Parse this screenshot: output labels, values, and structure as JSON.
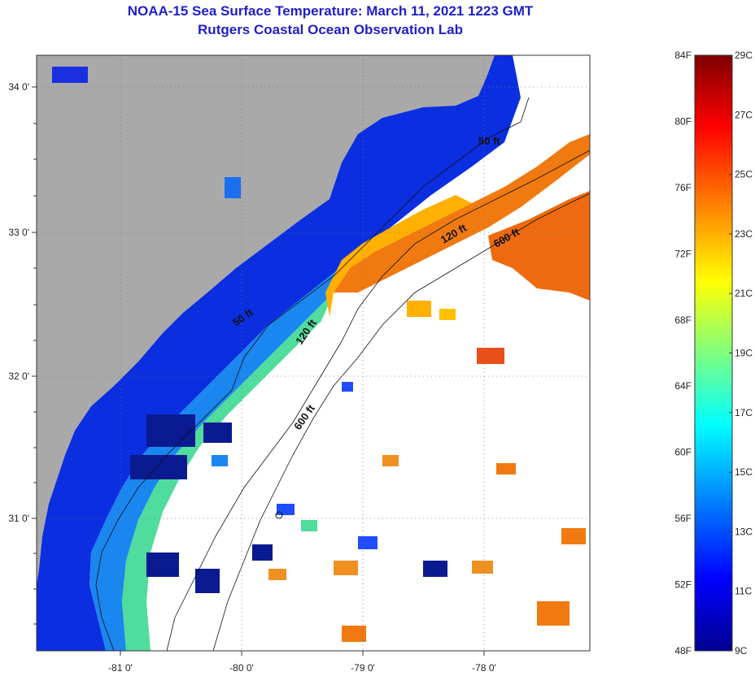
{
  "header": {
    "title": "NOAA-15 Sea Surface Temperature:  March 11, 2021 1223 GMT",
    "subtitle": "Rutgers Coastal Ocean Observation Lab"
  },
  "map": {
    "lon_labels": [
      "-81 0'",
      "-80 0'",
      "-79 0'",
      "-78 0'"
    ],
    "lat_labels": [
      "34 0'",
      "33 0'",
      "32 0'",
      "31 0'"
    ],
    "contour_labels": [
      "50 ft",
      "120 ft",
      "600 ft",
      "50 ft",
      "120 ft",
      "600 ft"
    ],
    "colors": {
      "land": "#a9a9a9",
      "cloud": "#ffffff",
      "frame": "#333333"
    }
  },
  "colorbar": {
    "fahrenheit_labels": [
      "84F",
      "80F",
      "76F",
      "72F",
      "68F",
      "64F",
      "60F",
      "56F",
      "52F",
      "48F"
    ],
    "celsius_labels": [
      "29C",
      "27C",
      "25C",
      "23C",
      "21C",
      "19C",
      "17C",
      "15C",
      "13C",
      "11C",
      "9C"
    ],
    "celsius_range": [
      9,
      29
    ],
    "stops": [
      "#7f0000",
      "#ff0000",
      "#ff7f00",
      "#ffff00",
      "#7fff7f",
      "#00ffff",
      "#007fff",
      "#0000ff",
      "#00008f"
    ]
  }
}
